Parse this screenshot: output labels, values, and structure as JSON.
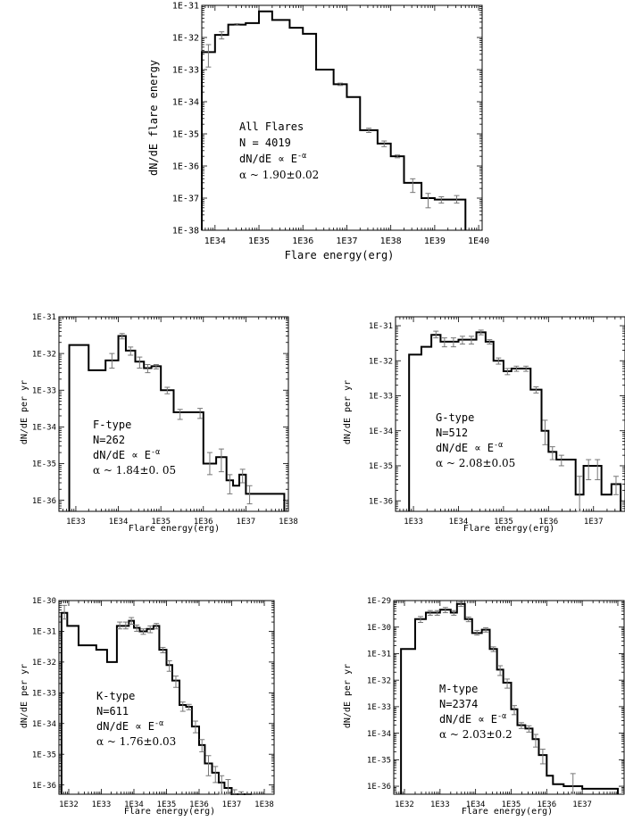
{
  "chart_data": [
    {
      "type": "histogram",
      "x_scale": "log",
      "y_scale": "log",
      "xlim": [
        5e+33,
        1.2e+40
      ],
      "ylim": [
        1e-38,
        1e-31
      ],
      "xlabel": "Flare energy(erg)",
      "ylabel": "dN/dE flare energy",
      "x_ticks": [
        "1E34",
        "1E35",
        "1E36",
        "1E37",
        "1E38",
        "1E39",
        "1E40"
      ],
      "y_ticks": [
        "1E-38",
        "1E-37",
        "1E-36",
        "1E-35",
        "1E-34",
        "1E-33",
        "1E-32",
        "1E-31"
      ],
      "annotation": [
        "All Flares",
        "N = 4019",
        "dN/dE ∝ E",
        "α ~ 1.90±0.02"
      ],
      "annotation_sup": "-α",
      "edges": [
        5e+33,
        1e+34,
        2e+34,
        5e+34,
        1e+35,
        2e+35,
        5e+35,
        1e+36,
        2e+36,
        5e+36,
        1e+37,
        2e+37,
        5e+37,
        1e+38,
        2e+38,
        5e+38,
        1e+39,
        2e+39,
        5e+39
      ],
      "values": [
        3.5e-33,
        1.2e-32,
        2.5e-32,
        2.8e-32,
        6.5e-32,
        3.5e-32,
        2e-32,
        1.3e-32,
        1e-33,
        3.5e-34,
        1.4e-34,
        1.3e-35,
        5e-36,
        2e-36,
        3e-37,
        1e-37,
        9e-38,
        9e-38
      ],
      "err_lo": [
        1.2e-33,
        9e-33,
        2.4e-32,
        0,
        0,
        0,
        0,
        0,
        0,
        3.2e-34,
        0,
        1.1e-35,
        4e-36,
        1.8e-36,
        1.5e-37,
        5e-38,
        7e-38,
        7e-38
      ],
      "err_hi": [
        6e-33,
        1.5e-32,
        2.7e-32,
        0,
        0,
        0,
        0,
        0,
        0,
        3.8e-34,
        0,
        1.5e-35,
        6e-36,
        2.2e-36,
        4e-37,
        1.4e-37,
        1.1e-37,
        1.2e-37
      ]
    },
    {
      "type": "histogram",
      "x_scale": "log",
      "y_scale": "log",
      "xlim": [
        4e+32,
        1e+38
      ],
      "ylim": [
        5e-37,
        1e-31
      ],
      "xlabel": "Flare energy(erg)",
      "ylabel": "dN/dE per yr",
      "x_ticks": [
        "1E33",
        "1E34",
        "1E35",
        "1E36",
        "1E37",
        "1E38"
      ],
      "y_ticks": [
        "1E-36",
        "1E-35",
        "1E-34",
        "1E-33",
        "1E-32",
        "1E-31"
      ],
      "annotation": [
        "F-type",
        "N=262",
        "dN/dE ∝ E",
        "α ~ 1.84±0. 05"
      ],
      "annotation_sup": "-α",
      "edges": [
        7e+32,
        2e+33,
        5e+33,
        1e+34,
        1.5e+34,
        2.5e+34,
        4e+34,
        6e+34,
        1e+35,
        2e+35,
        4e+35,
        7e+35,
        1e+36,
        2e+36,
        3.5e+36,
        5e+36,
        7e+36,
        1e+37,
        1.5e+37,
        2.5e+37,
        4e+37,
        6e+37,
        8e+37
      ],
      "values": [
        1.7e-32,
        3.5e-33,
        6.5e-33,
        3e-32,
        1.2e-32,
        6e-33,
        4e-33,
        4.5e-33,
        1e-33,
        2.5e-34,
        2.5e-34,
        2.5e-34,
        1e-35,
        1.5e-35,
        3.5e-36,
        2.5e-36,
        5e-36,
        1.5e-36,
        1.5e-36,
        1.5e-36,
        1.5e-36,
        1.5e-36
      ],
      "err_lo": [
        0,
        0,
        4e-33,
        2.5e-32,
        9e-33,
        4e-33,
        3e-33,
        3.8e-33,
        8e-34,
        1.6e-34,
        0,
        1.7e-34,
        5e-36,
        6e-36,
        1.5e-36,
        0,
        3e-36,
        8e-37,
        0,
        0,
        0,
        0
      ],
      "err_hi": [
        0,
        0,
        1e-32,
        3.5e-32,
        1.5e-32,
        8e-33,
        5e-33,
        5e-33,
        1.2e-33,
        3e-34,
        0,
        3.2e-34,
        2e-35,
        2.5e-35,
        5e-36,
        0,
        7e-36,
        2.5e-36,
        0,
        0,
        0,
        0
      ]
    },
    {
      "type": "histogram",
      "x_scale": "log",
      "y_scale": "log",
      "xlim": [
        4e+32,
        5e+37
      ],
      "ylim": [
        5e-37,
        1.8e-31
      ],
      "xlabel": "Flare energy(erg)",
      "ylabel": "dN/dE per yr",
      "x_ticks": [
        "1E33",
        "1E34",
        "1E35",
        "1E36",
        "1E37"
      ],
      "y_ticks": [
        "1E-36",
        "1E-35",
        "1E-34",
        "1E-33",
        "1E-32",
        "1E-31"
      ],
      "annotation": [
        "G-type",
        "N=512",
        "dN/dE ∝ E",
        "α ~ 2.08±0.05"
      ],
      "annotation_sup": "-α",
      "edges": [
        8e+32,
        1.5e+33,
        2.5e+33,
        4e+33,
        6e+33,
        1e+34,
        1.5e+34,
        2.5e+34,
        4e+34,
        6e+34,
        1e+35,
        1.5e+35,
        2.5e+35,
        4e+35,
        7e+35,
        1e+36,
        1.5e+36,
        2.5e+36,
        4e+36,
        6e+36,
        1e+37,
        1.5e+37,
        2.5e+37,
        4e+37
      ],
      "values": [
        1.5e-32,
        2.5e-32,
        5.5e-32,
        3.5e-32,
        3.5e-32,
        4e-32,
        4e-32,
        6.5e-32,
        3.5e-32,
        1e-32,
        5e-33,
        6e-33,
        6e-33,
        1.5e-33,
        1e-34,
        2.5e-35,
        1.5e-35,
        1.5e-35,
        1.5e-36,
        1e-35,
        1e-35,
        1.5e-36,
        3e-36
      ],
      "err_lo": [
        0,
        0,
        4.5e-32,
        2.5e-32,
        2.5e-32,
        3e-32,
        3e-32,
        5.5e-32,
        3e-32,
        8e-33,
        4e-33,
        5e-33,
        5e-33,
        1.2e-33,
        4e-35,
        1.5e-35,
        1e-35,
        0,
        5e-37,
        4e-36,
        4e-36,
        0,
        1.5e-36
      ],
      "err_hi": [
        0,
        0,
        7e-32,
        4.5e-32,
        4.5e-32,
        5e-32,
        5e-32,
        7.5e-32,
        4e-32,
        1.2e-32,
        6e-33,
        7e-33,
        7e-33,
        1.8e-33,
        2e-34,
        3.5e-35,
        2e-35,
        0,
        5e-36,
        1.5e-35,
        1.5e-35,
        0,
        5e-36
      ]
    },
    {
      "type": "histogram",
      "x_scale": "log",
      "y_scale": "log",
      "xlim": [
        5e+31,
        2e+38
      ],
      "ylim": [
        5e-37,
        1e-30
      ],
      "xlabel": "Flare energy(erg)",
      "ylabel": "dN/dE per yr",
      "x_ticks": [
        "1E32",
        "1E33",
        "1E34",
        "1E35",
        "1E36",
        "1E37",
        "1E38"
      ],
      "y_ticks": [
        "1E-36",
        "1E-35",
        "1E-34",
        "1E-33",
        "1E-32",
        "1E-31",
        "1E-30"
      ],
      "annotation": [
        "K-type",
        "N=611",
        "dN/dE ∝ E",
        "α ~ 1.76±0.03"
      ],
      "annotation_sup": "-α",
      "edges": [
        6e+31,
        9e+31,
        2e+32,
        7e+32,
        1.5e+33,
        3e+33,
        4.5e+33,
        7e+33,
        1e+34,
        1.5e+34,
        2.5e+34,
        4e+34,
        6e+34,
        1e+35,
        1.5e+35,
        2.5e+35,
        4e+35,
        6e+35,
        1e+36,
        1.5e+36,
        2.5e+36,
        4e+36,
        6e+36,
        1e+37,
        1.5e+37,
        2.5e+37,
        4e+37
      ],
      "values": [
        4e-31,
        1.5e-31,
        3.5e-32,
        2.5e-32,
        1e-32,
        1.5e-31,
        1.5e-31,
        2.2e-31,
        1.3e-31,
        1e-31,
        1.2e-31,
        1.5e-31,
        2.5e-32,
        8e-33,
        2.5e-33,
        4e-34,
        3.5e-34,
        8e-35,
        2e-35,
        5e-36,
        2.5e-36,
        1.2e-36,
        8e-37,
        4e-37,
        3.5e-37,
        3.5e-37
      ],
      "err_lo": [
        2.5e-31,
        0,
        0,
        0,
        0,
        1.2e-31,
        1.2e-31,
        1.7e-31,
        1e-31,
        8e-32,
        9e-32,
        1.2e-31,
        2e-32,
        5e-33,
        1.5e-33,
        2.5e-34,
        2.8e-34,
        5e-35,
        1.2e-35,
        2e-36,
        1.2e-36,
        5e-37,
        3e-37,
        1.5e-37,
        1.5e-37,
        1.5e-37
      ],
      "err_hi": [
        7e-31,
        0,
        0,
        0,
        0,
        2e-31,
        2e-31,
        2.8e-31,
        1.6e-31,
        1.2e-31,
        1.5e-31,
        1.8e-31,
        3e-32,
        1.1e-32,
        3.5e-33,
        5e-34,
        4.2e-34,
        1.2e-34,
        3e-35,
        9e-36,
        4e-36,
        2e-36,
        1.5e-36,
        7e-37,
        6e-37,
        5e-37
      ]
    },
    {
      "type": "histogram",
      "x_scale": "log",
      "y_scale": "log",
      "xlim": [
        5e+31,
        1.5e+38
      ],
      "ylim": [
        5e-37,
        1e-29
      ],
      "xlabel": "Flare energy(erg)",
      "ylabel": "dN/dE per yr",
      "x_ticks": [
        "1E32",
        "1E33",
        "1E34",
        "1E35",
        "1E36",
        "1E37"
      ],
      "y_ticks": [
        "1E-36",
        "1E-35",
        "1E-34",
        "1E-33",
        "1E-32",
        "1E-31",
        "1E-30",
        "1E-29"
      ],
      "annotation": [
        "M-type",
        "N=2374",
        "dN/dE ∝ E",
        "α ~ 2.03±0.2"
      ],
      "annotation_sup": "-α",
      "edges": [
        8e+31,
        2e+32,
        4e+32,
        7e+32,
        1e+33,
        2e+33,
        3e+33,
        5e+33,
        8e+33,
        1.5e+34,
        2.5e+34,
        4e+34,
        6e+34,
        1e+35,
        1.5e+35,
        2.5e+35,
        4e+35,
        6e+35,
        1e+36,
        1.5e+36,
        2e+36,
        3e+36,
        1e+37,
        1e+38
      ],
      "values": [
        1.5e-31,
        2e-30,
        3.5e-30,
        3.5e-30,
        4.5e-30,
        3.5e-30,
        7.5e-30,
        2e-30,
        6e-31,
        8e-31,
        1.5e-31,
        2.5e-32,
        8e-33,
        8e-34,
        2e-34,
        1.5e-34,
        6e-35,
        1.5e-35,
        2.5e-36,
        1.2e-36,
        1.2e-36,
        1e-36,
        8e-37
      ],
      "err_lo": [
        0,
        1.5e-30,
        2.8e-30,
        2.8e-30,
        3.5e-30,
        2.8e-30,
        6e-30,
        1.6e-30,
        5e-31,
        6.5e-31,
        1.2e-31,
        1.5e-32,
        5e-33,
        5e-34,
        1.5e-34,
        1.1e-34,
        3e-35,
        7e-36,
        0,
        0,
        0,
        4e-37,
        0
      ],
      "err_hi": [
        0,
        2.5e-30,
        4.2e-30,
        4.2e-30,
        5.5e-30,
        4.2e-30,
        9e-30,
        2.4e-30,
        7.5e-31,
        9.5e-31,
        1.8e-31,
        3.5e-32,
        1.1e-32,
        1.1e-33,
        2.5e-34,
        1.9e-34,
        9e-35,
        2.5e-35,
        0,
        0,
        0,
        3e-36,
        0
      ]
    }
  ]
}
